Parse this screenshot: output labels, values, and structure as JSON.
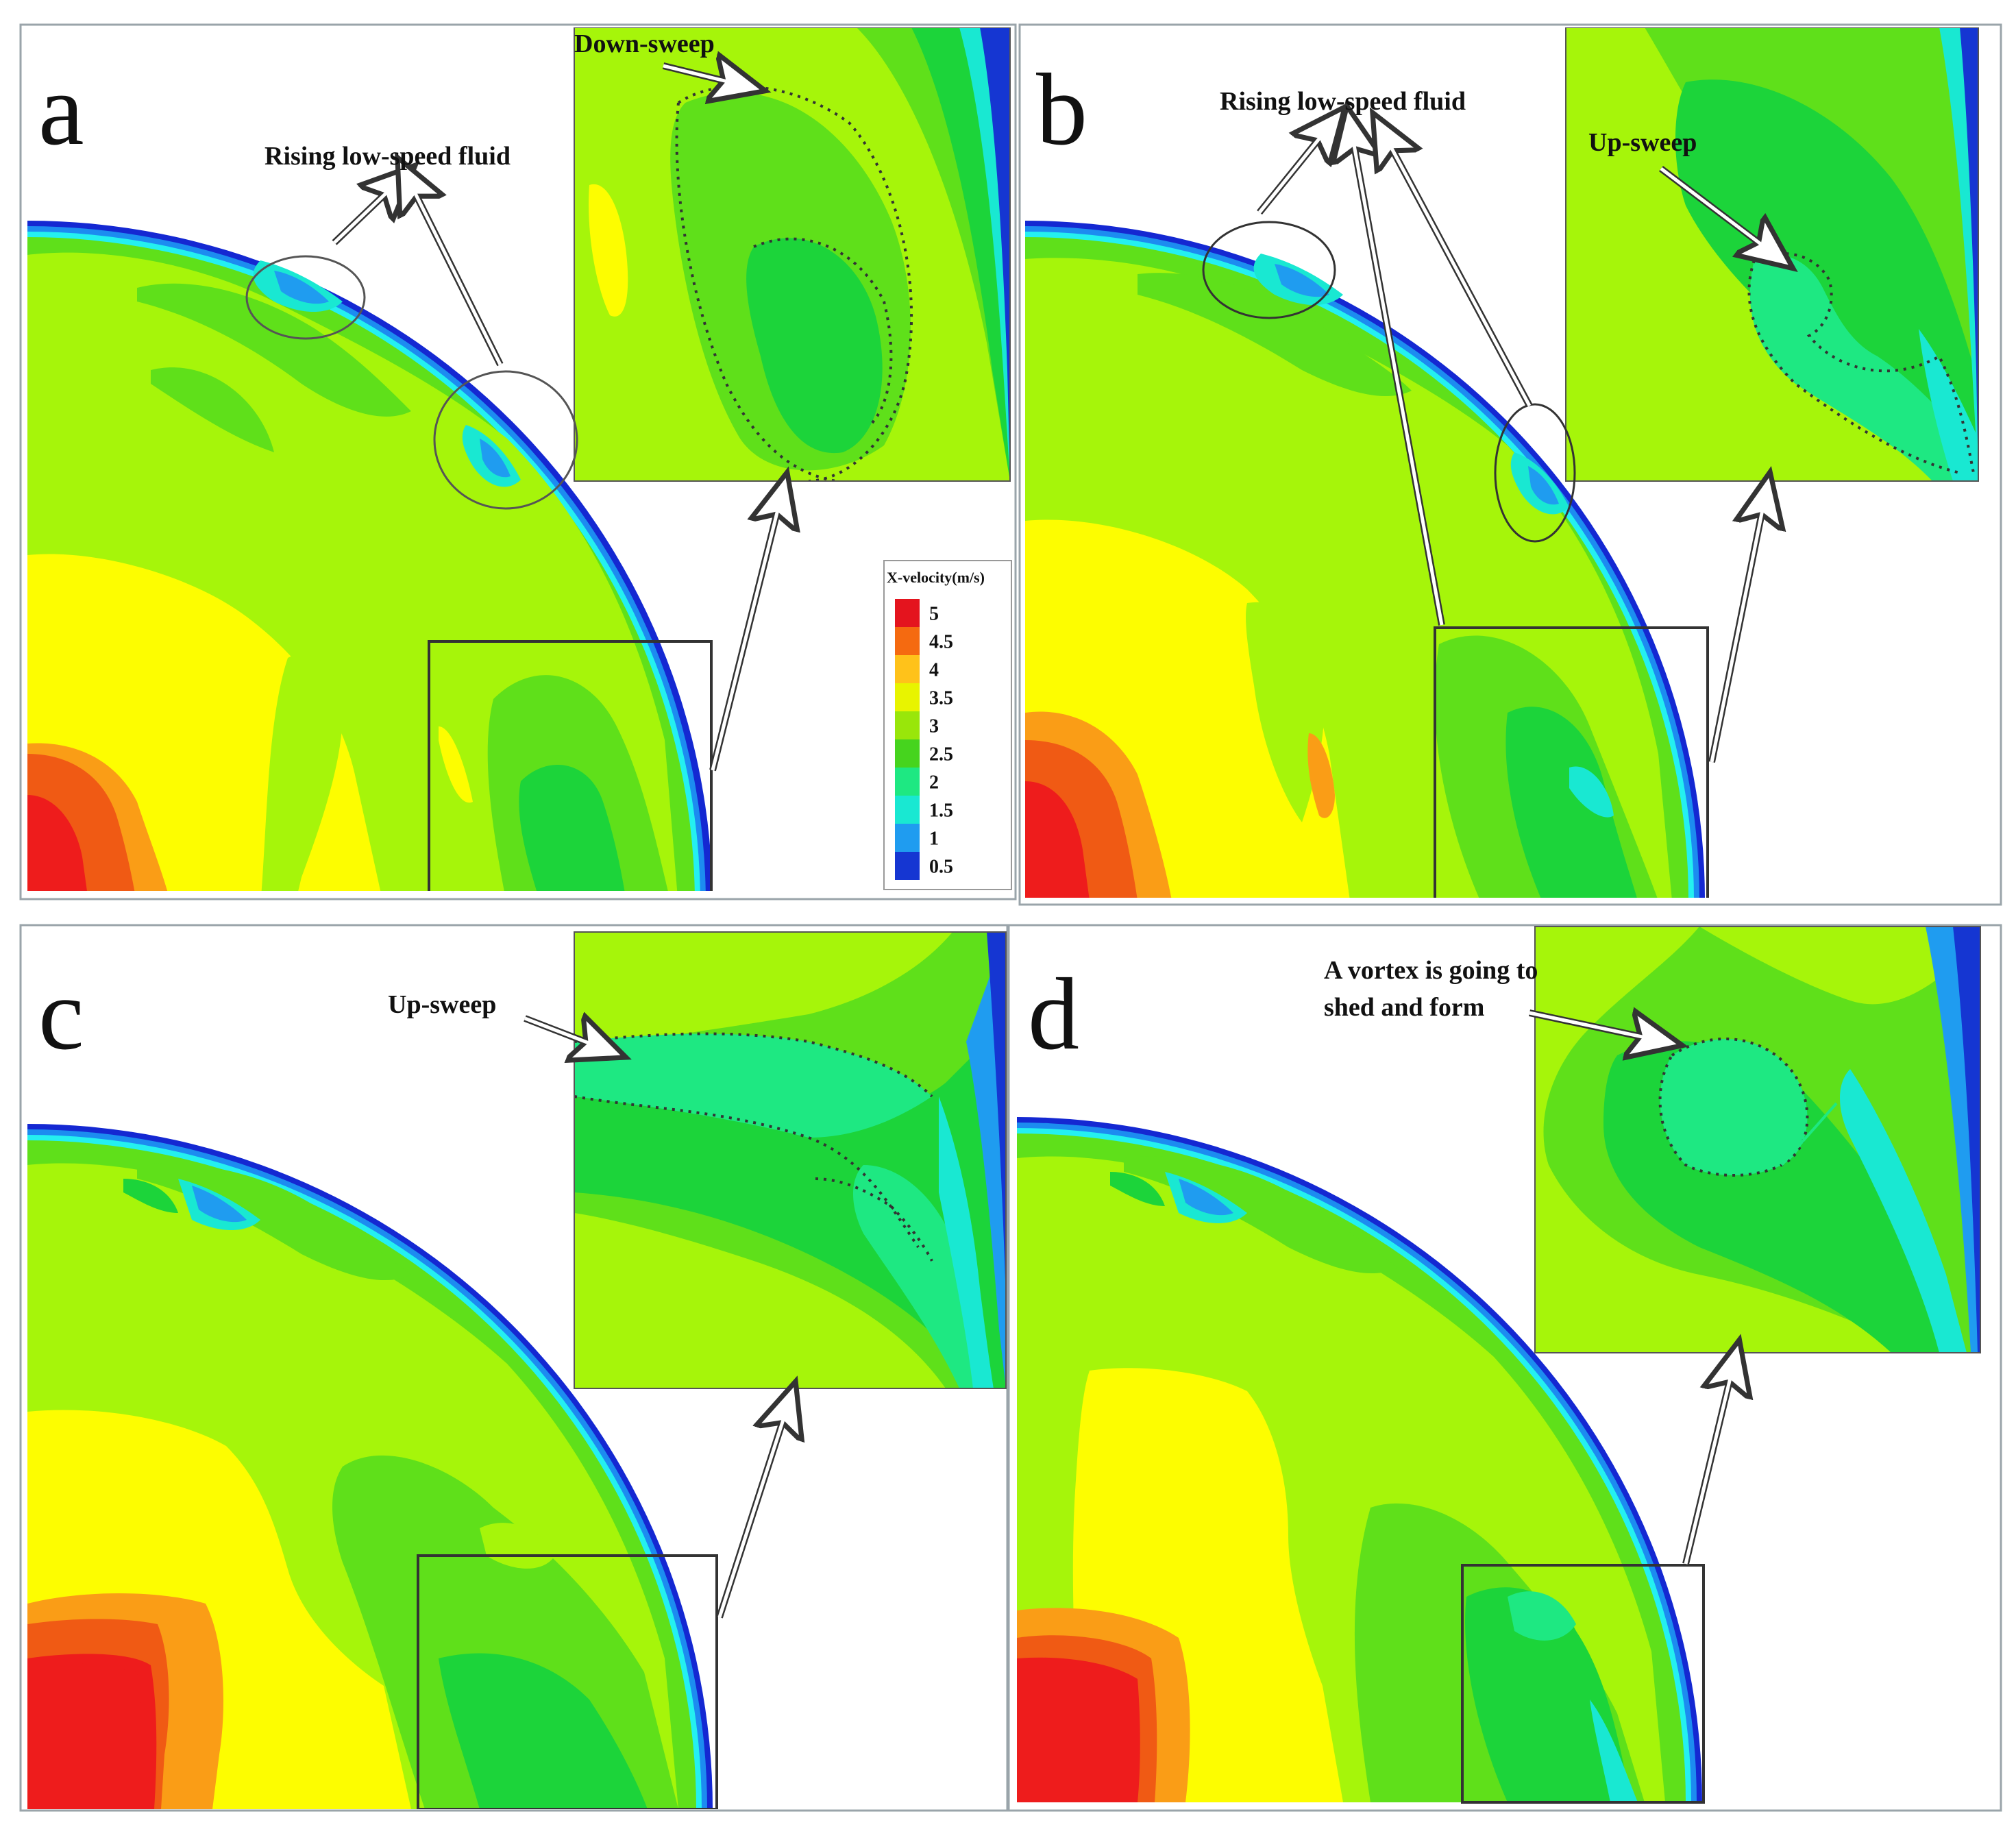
{
  "panels": [
    {
      "letter": "a",
      "annotations": [
        "Rising low-speed fluid",
        "Down-sweep"
      ]
    },
    {
      "letter": "b",
      "annotations": [
        "Rising low-speed fluid",
        "Up-sweep"
      ]
    },
    {
      "letter": "c",
      "annotations": [
        "Up-sweep"
      ]
    },
    {
      "letter": "d",
      "annotations": [
        "A vortex is going to",
        "shed and form"
      ]
    }
  ],
  "legend": {
    "title": "X-velocity(m/s)",
    "ticks": [
      "5",
      "4.5",
      "4",
      "3.5",
      "3",
      "2.5",
      "2",
      "1.5",
      "1",
      "0.5"
    ],
    "colors": [
      "#e4141e",
      "#f56a10",
      "#ffc21a",
      "#e8f400",
      "#99e60a",
      "#46d41e",
      "#1ee882",
      "#19e8d2",
      "#1f9cf0",
      "#1536d2"
    ]
  },
  "palette": {
    "red": "#ee1c1c",
    "orange_red": "#f05a14",
    "orange": "#fa9d16",
    "yellow": "#fdfd00",
    "yellow_green": "#a6f50a",
    "green": "#5fe01a",
    "bright_green": "#1cd43a",
    "spring_green": "#2ff08c",
    "cyan": "#24f0f0",
    "sky_blue": "#1c8cf0",
    "blue": "#1428d2"
  }
}
